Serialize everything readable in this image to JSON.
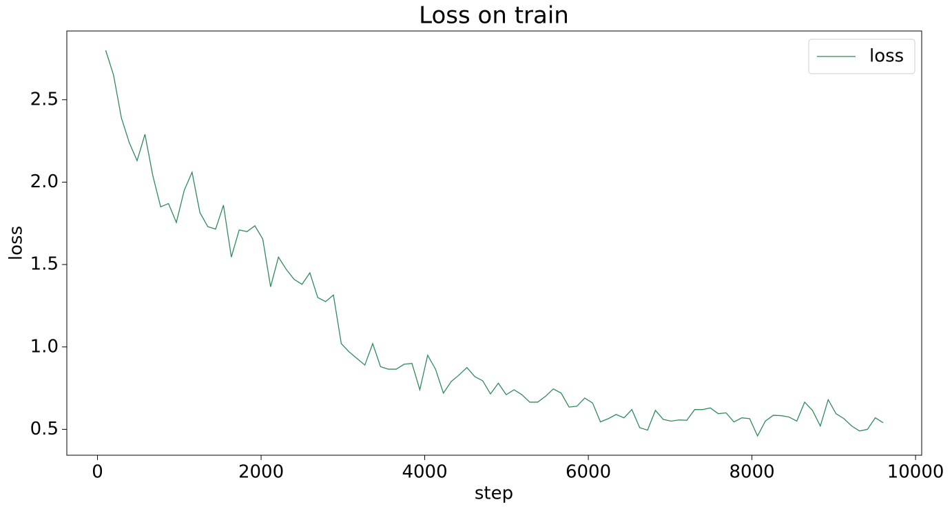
{
  "chart_data": {
    "type": "line",
    "title": "Loss on train",
    "xlabel": "step",
    "ylabel": "loss",
    "x": [
      100,
      196,
      292,
      388,
      484,
      580,
      676,
      772,
      868,
      964,
      1060,
      1156,
      1252,
      1348,
      1444,
      1540,
      1636,
      1732,
      1828,
      1924,
      2020,
      2116,
      2212,
      2308,
      2404,
      2500,
      2596,
      2692,
      2788,
      2884,
      2980,
      3076,
      3172,
      3268,
      3364,
      3460,
      3556,
      3652,
      3748,
      3844,
      3940,
      4036,
      4132,
      4228,
      4324,
      4420,
      4516,
      4612,
      4708,
      4804,
      4900,
      4996,
      5092,
      5188,
      5284,
      5380,
      5476,
      5572,
      5668,
      5764,
      5860,
      5956,
      6052,
      6148,
      6244,
      6340,
      6436,
      6532,
      6628,
      6724,
      6820,
      6916,
      7012,
      7108,
      7204,
      7300,
      7396,
      7492,
      7588,
      7684,
      7780,
      7876,
      7972,
      8068,
      8164,
      8260,
      8356,
      8452,
      8548,
      8644,
      8740,
      8836,
      8932,
      9028,
      9124,
      9220,
      9316,
      9412,
      9508,
      9604
    ],
    "series": [
      {
        "name": "loss",
        "color": "#2e8b57",
        "values": [
          2.8,
          2.65,
          2.39,
          2.24,
          2.13,
          2.29,
          2.04,
          1.85,
          1.87,
          1.755,
          1.95,
          2.06,
          1.815,
          1.73,
          1.715,
          1.86,
          1.545,
          1.71,
          1.7,
          1.735,
          1.655,
          1.365,
          1.545,
          1.47,
          1.41,
          1.38,
          1.45,
          1.3,
          1.275,
          1.315,
          1.02,
          0.97,
          0.93,
          0.89,
          1.02,
          0.88,
          0.865,
          0.865,
          0.895,
          0.9,
          0.74,
          0.95,
          0.865,
          0.72,
          0.79,
          0.83,
          0.875,
          0.82,
          0.795,
          0.715,
          0.78,
          0.71,
          0.74,
          0.71,
          0.665,
          0.665,
          0.7,
          0.745,
          0.72,
          0.635,
          0.64,
          0.69,
          0.66,
          0.545,
          0.565,
          0.59,
          0.57,
          0.62,
          0.51,
          0.495,
          0.615,
          0.56,
          0.55,
          0.557,
          0.555,
          0.62,
          0.62,
          0.63,
          0.595,
          0.6,
          0.545,
          0.57,
          0.565,
          0.46,
          0.55,
          0.585,
          0.583,
          0.575,
          0.55,
          0.665,
          0.615,
          0.52,
          0.68,
          0.595,
          0.565,
          0.52,
          0.49,
          0.5,
          0.57,
          0.54
        ]
      }
    ],
    "xlim": [
      -375,
      10075
    ],
    "xticks": [
      0,
      2000,
      4000,
      6000,
      8000,
      10000
    ],
    "ylim": [
      0.343,
      2.917
    ],
    "yticks": [
      0.5,
      {
        "value": 1,
        "label": "1.0"
      },
      1.5,
      {
        "value": 2,
        "label": "2.0"
      },
      2.5
    ],
    "grid": false,
    "legend": "upper right"
  }
}
